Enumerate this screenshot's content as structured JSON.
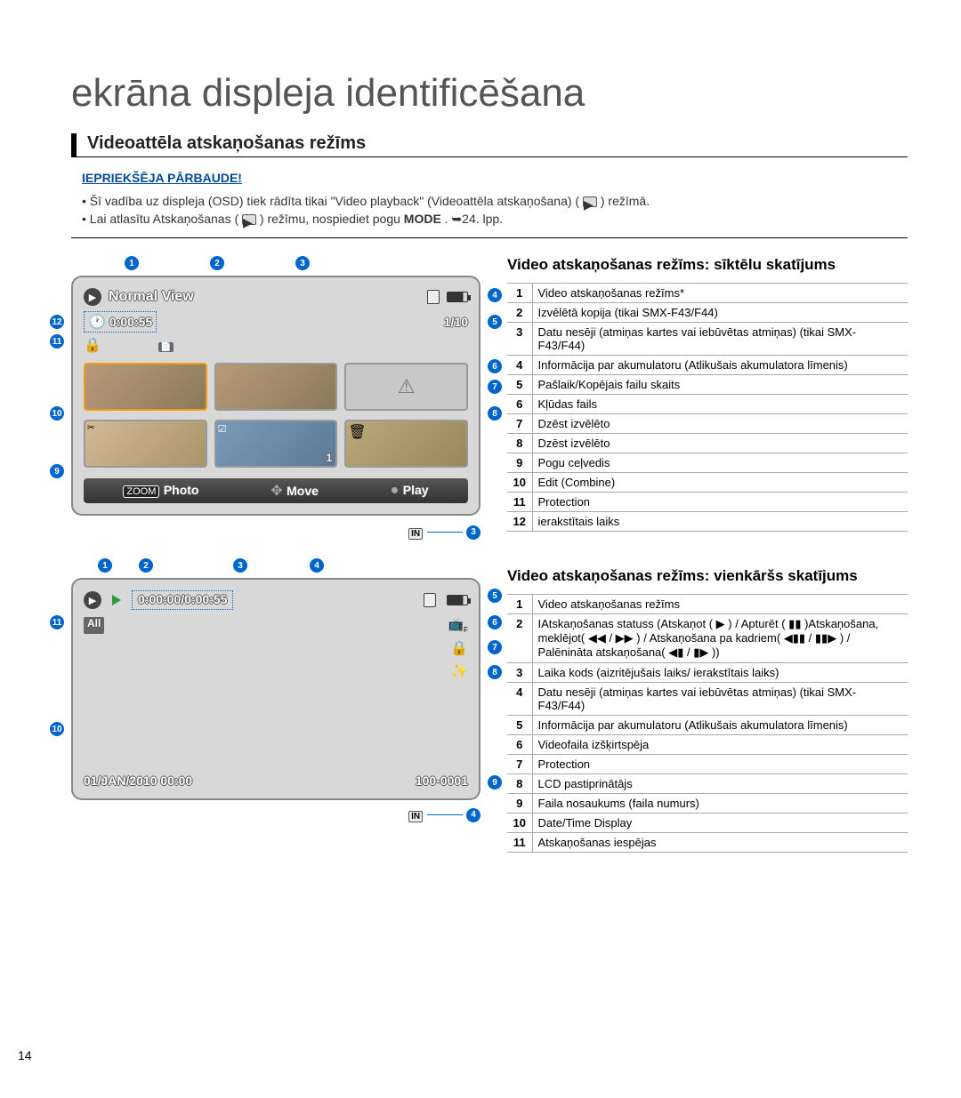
{
  "page": {
    "title": "ekrāna displeja identificēšana",
    "section_title": "Videoattēla atskaņošanas režīms",
    "precheck_label": "IEPRIEKŠĒJA PĀRBAUDE!",
    "bullet1_a": "Šī vadība uz displeja (OSD) tiek rādīta tikai \"Video playback\" (Videoattēla atskaņošana) (",
    "bullet1_b": ") režīmā.",
    "bullet2_a": "Lai atlasītu Atskaņošanas (",
    "bullet2_b": ") režīmu, nospiediet pogu ",
    "bullet2_mode": "MODE",
    "bullet2_c": ". ➥24. lpp.",
    "page_number": "14"
  },
  "screen1": {
    "view_label": "Normal View",
    "time": "0:00:55",
    "counter": "1/10",
    "btn_photo": "Photo",
    "btn_move": "Move",
    "btn_play": "Play",
    "zoom": "ZOOM",
    "in_label": "IN"
  },
  "legend1": {
    "title": "Video atskaņošanas režīms: sīktēlu skatījums",
    "rows": [
      {
        "n": "1",
        "t": "Video atskaņošanas režīms*"
      },
      {
        "n": "2",
        "t": "Izvēlētā kopija (tikai SMX-F43/F44)"
      },
      {
        "n": "3",
        "t": "Datu nesēji (atmiņas kartes vai iebūvētas atmiņas) (tikai SMX-F43/F44)"
      },
      {
        "n": "4",
        "t": "Informācija par akumulatoru (Atlikušais akumulatora līmenis)"
      },
      {
        "n": "5",
        "t": "Pašlaik/Kopējais failu skaits"
      },
      {
        "n": "6",
        "t": "Kļūdas fails"
      },
      {
        "n": "7",
        "t": "Dzēst izvēlēto"
      },
      {
        "n": "8",
        "t": "Dzēst izvēlēto"
      },
      {
        "n": "9",
        "t": "Pogu ceļvedis"
      },
      {
        "n": "10",
        "t": "Edit (Combine)"
      },
      {
        "n": "11",
        "t": "Protection"
      },
      {
        "n": "12",
        "t": "ierakstītais laiks"
      }
    ]
  },
  "screen2": {
    "timecode": "0:00:00/0:00:55",
    "all": "All",
    "date": "01/JAN/2010 00:00",
    "filenum": "100-0001",
    "in_label": "IN"
  },
  "legend2": {
    "title": "Video atskaņošanas režīms: vienkāršs skatījums",
    "rows": [
      {
        "n": "1",
        "t": "Video atskaņošanas režīms"
      },
      {
        "n": "2",
        "t": "IAtskaņošanas statuss (Atskaņot ( ▶ ) / Apturēt ( ▮▮ )Atskaņošana, meklējot( ◀◀ / ▶▶ ) / Atskaņošana pa kadriem( ◀▮▮ / ▮▮▶ ) / Palēnināta atskaņošana( ◀▮ / ▮▶ ))"
      },
      {
        "n": "3",
        "t": "Laika kods (aizritējušais laiks/ ierakstītais laiks)"
      },
      {
        "n": "4",
        "t": "Datu nesēji (atmiņas kartes vai iebūvētas atmiņas) (tikai SMX-F43/F44)"
      },
      {
        "n": "5",
        "t": "Informācija par akumulatoru (Atlikušais akumulatora līmenis)"
      },
      {
        "n": "6",
        "t": "Videofaila izšķirtspēja"
      },
      {
        "n": "7",
        "t": "Protection"
      },
      {
        "n": "8",
        "t": "LCD pastiprinātājs"
      },
      {
        "n": "9",
        "t": "Faila nosaukums (faila numurs)"
      },
      {
        "n": "10",
        "t": "Date/Time Display"
      },
      {
        "n": "11",
        "t": "Atskaņošanas iespējas"
      }
    ]
  },
  "callouts": {
    "c1": "1",
    "c2": "2",
    "c3": "3",
    "c4": "4",
    "c5": "5",
    "c6": "6",
    "c7": "7",
    "c8": "8",
    "c9": "9",
    "c10": "10",
    "c11": "11",
    "c12": "12"
  }
}
